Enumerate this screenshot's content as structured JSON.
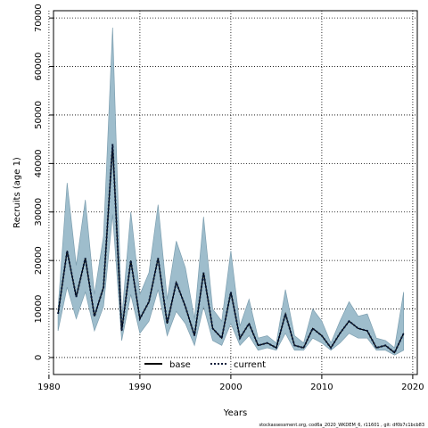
{
  "chart_data": {
    "type": "area",
    "title": "",
    "xlabel": "Years",
    "ylabel": "Recruits (age 1)",
    "xlim": [
      1980.5,
      2020.5
    ],
    "ylim": [
      -3500,
      71500
    ],
    "xticks": [
      1980,
      1990,
      2000,
      2010,
      2020
    ],
    "yticks": [
      0,
      10000,
      20000,
      30000,
      40000,
      50000,
      60000,
      70000
    ],
    "xtick_labels": [
      "1980",
      "1990",
      "2000",
      "2010",
      "2020"
    ],
    "ytick_labels": [
      "0",
      "10000",
      "20000",
      "30000",
      "40000",
      "50000",
      "60000",
      "70000"
    ],
    "grid": true,
    "legend_position": "bottom-center",
    "colors": {
      "band": "#9ebdcc",
      "band_edge": "#7d9fb0",
      "base": "#000000",
      "current": "#0a1a3a"
    },
    "years": [
      1981,
      1982,
      1983,
      1984,
      1985,
      1986,
      1987,
      1988,
      1989,
      1990,
      1991,
      1992,
      1993,
      1994,
      1995,
      1996,
      1997,
      1998,
      1999,
      2000,
      2001,
      2002,
      2003,
      2004,
      2005,
      2006,
      2007,
      2008,
      2009,
      2010,
      2011,
      2012,
      2013,
      2014,
      2015,
      2016,
      2017,
      2018,
      2019
    ],
    "series": [
      {
        "name": "base",
        "style": "solid",
        "values": [
          9000,
          22000,
          12500,
          20500,
          8500,
          14500,
          44000,
          5500,
          20000,
          8000,
          11500,
          20500,
          7000,
          15500,
          10500,
          4500,
          17500,
          6000,
          4000,
          13500,
          4000,
          7000,
          2500,
          3000,
          2000,
          9000,
          2500,
          2000,
          6000,
          4500,
          2000,
          5000,
          7500,
          6000,
          5500,
          2000,
          2500,
          1000,
          5000
        ]
      },
      {
        "name": "current",
        "style": "dotted",
        "values": [
          9000,
          22000,
          12500,
          20500,
          8500,
          14500,
          44000,
          5500,
          20000,
          8000,
          11500,
          20500,
          7000,
          15500,
          10500,
          4500,
          17500,
          6000,
          4000,
          13500,
          4000,
          7000,
          2500,
          3000,
          2000,
          9000,
          2500,
          2000,
          6000,
          4500,
          2000,
          5000,
          7500,
          6000,
          5500,
          2000,
          2500,
          1000,
          5000
        ]
      }
    ],
    "band": {
      "upper": [
        10000,
        36000,
        19000,
        32500,
        13000,
        25000,
        68000,
        8000,
        30000,
        13000,
        17500,
        31500,
        12000,
        24000,
        18500,
        8000,
        29000,
        10000,
        7500,
        22000,
        6500,
        12000,
        4000,
        4500,
        3000,
        14000,
        4500,
        3000,
        10000,
        7500,
        3000,
        7500,
        11500,
        8500,
        9000,
        4000,
        3500,
        2000,
        13500
      ],
      "lower": [
        5500,
        14500,
        8000,
        13500,
        5500,
        10500,
        29500,
        3500,
        13000,
        5000,
        7500,
        14000,
        4500,
        9500,
        7000,
        2500,
        10500,
        3500,
        2500,
        7000,
        2500,
        4500,
        1500,
        2000,
        1500,
        5000,
        1500,
        1500,
        4000,
        3000,
        1500,
        3000,
        5000,
        4000,
        4000,
        1500,
        1500,
        500,
        1500
      ]
    },
    "footnote": "stockassessment.org, cod6a_2020_WKDEM_6, r11601 , git: df0b7c1bcb83"
  }
}
